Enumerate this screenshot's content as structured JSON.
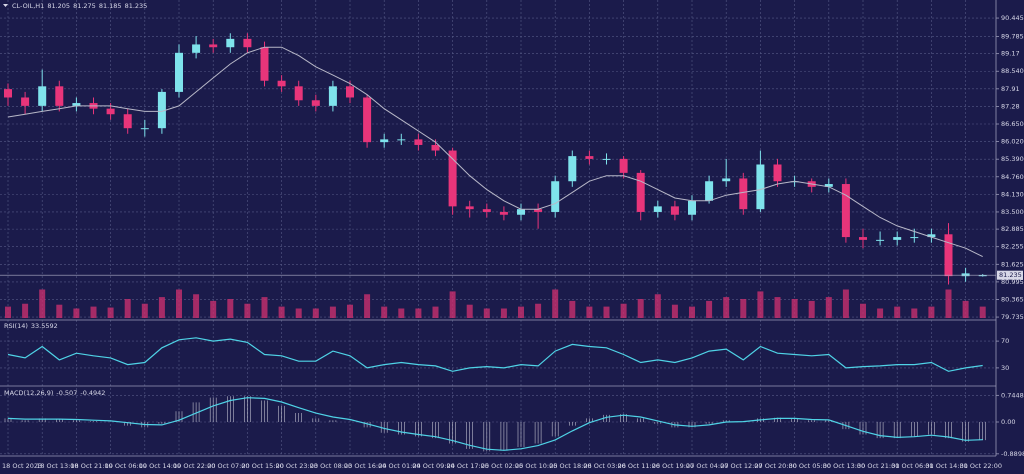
{
  "chart_data": [
    {
      "type": "candlestick",
      "title": "CL-OIL,H1",
      "categories": [
        "18 Oct 2023",
        null,
        "18 Oct 13:00",
        null,
        "18 Oct 21:00",
        null,
        "19 Oct 06:00",
        null,
        "19 Oct 14:00",
        null,
        "19 Oct 22:00",
        null,
        "20 Oct 07:00",
        null,
        "20 Oct 15:00",
        null,
        "20 Oct 23:00",
        null,
        "23 Oct 08:00",
        null,
        "23 Oct 16:00",
        null,
        "24 Oct 01:00",
        null,
        "24 Oct 09:00",
        null,
        "24 Oct 17:00",
        null,
        "25 Oct 02:00",
        null,
        "25 Oct 10:00",
        null,
        "25 Oct 18:00",
        null,
        "26 Oct 03:00",
        null,
        "26 Oct 11:00",
        null,
        "26 Oct 19:00",
        null,
        "27 Oct 04:00",
        null,
        "27 Oct 12:00",
        null,
        "27 Oct 20:00",
        null,
        "30 Oct 05:00",
        null,
        "30 Oct 13:00",
        null,
        "30 Oct 21:00",
        null,
        "31 Oct 06:00",
        null,
        "31 Oct 14:00",
        null,
        "31 Oct 22:00",
        null
      ],
      "open": [
        87.9,
        87.6,
        87.3,
        88.0,
        87.3,
        87.4,
        87.2,
        87.0,
        86.5,
        86.5,
        87.8,
        89.2,
        89.5,
        89.4,
        89.7,
        89.4,
        88.2,
        88.0,
        87.5,
        87.3,
        88.0,
        87.6,
        86.0,
        86.1,
        86.1,
        85.9,
        85.7,
        83.7,
        83.6,
        83.5,
        83.4,
        83.6,
        83.5,
        84.6,
        85.5,
        85.4,
        85.4,
        84.9,
        83.5,
        83.7,
        83.4,
        83.9,
        84.6,
        84.7,
        83.6,
        85.2,
        84.6,
        84.6,
        84.4,
        84.5,
        82.6,
        82.5,
        82.5,
        82.6,
        82.6,
        82.7,
        81.2,
        81.205
      ],
      "high": [
        88.1,
        87.8,
        88.6,
        88.2,
        87.6,
        87.6,
        87.4,
        87.2,
        86.8,
        87.9,
        89.5,
        89.8,
        89.7,
        89.9,
        89.9,
        89.6,
        88.4,
        88.2,
        87.7,
        88.2,
        88.2,
        87.7,
        86.3,
        86.3,
        86.3,
        86.1,
        85.8,
        83.9,
        83.8,
        83.7,
        83.8,
        83.8,
        84.8,
        85.7,
        85.7,
        85.6,
        85.5,
        85.0,
        83.9,
        83.9,
        84.1,
        84.8,
        85.4,
        84.9,
        85.7,
        85.4,
        84.8,
        84.7,
        84.7,
        84.7,
        82.9,
        82.8,
        82.8,
        82.9,
        82.9,
        83.1,
        81.5,
        81.275
      ],
      "low": [
        87.3,
        87.0,
        87.1,
        87.1,
        87.1,
        87.0,
        86.8,
        86.3,
        86.2,
        86.3,
        87.6,
        89.0,
        89.2,
        89.2,
        89.2,
        88.0,
        87.8,
        87.3,
        87.1,
        87.1,
        87.4,
        85.8,
        85.8,
        85.9,
        85.7,
        85.5,
        83.4,
        83.3,
        83.3,
        83.2,
        83.2,
        82.9,
        83.3,
        84.4,
        85.2,
        85.2,
        84.7,
        83.2,
        83.3,
        83.2,
        83.2,
        83.8,
        84.4,
        83.4,
        83.5,
        84.4,
        84.4,
        84.2,
        84.2,
        82.4,
        82.2,
        82.3,
        82.3,
        82.4,
        82.4,
        80.9,
        81.0,
        81.185
      ],
      "close": [
        87.6,
        87.3,
        88.0,
        87.3,
        87.4,
        87.2,
        87.0,
        86.5,
        86.5,
        87.8,
        89.2,
        89.5,
        89.4,
        89.7,
        89.4,
        88.2,
        88.0,
        87.5,
        87.3,
        88.0,
        87.6,
        86.0,
        86.1,
        86.1,
        85.9,
        85.7,
        83.7,
        83.6,
        83.5,
        83.4,
        83.6,
        83.5,
        84.6,
        85.5,
        85.4,
        85.4,
        84.9,
        83.5,
        83.7,
        83.4,
        83.9,
        84.6,
        84.7,
        83.6,
        85.2,
        84.6,
        84.6,
        84.4,
        84.5,
        82.6,
        82.5,
        82.5,
        82.6,
        82.6,
        82.7,
        81.2,
        81.3,
        81.235
      ],
      "ma": [
        86.9,
        87.0,
        87.1,
        87.2,
        87.3,
        87.3,
        87.3,
        87.2,
        87.1,
        87.1,
        87.3,
        87.8,
        88.3,
        88.8,
        89.2,
        89.4,
        89.4,
        89.1,
        88.7,
        88.4,
        88.1,
        87.7,
        87.2,
        86.8,
        86.4,
        86.0,
        85.4,
        84.8,
        84.3,
        83.9,
        83.6,
        83.6,
        83.8,
        84.2,
        84.6,
        84.8,
        84.8,
        84.6,
        84.3,
        84.0,
        83.9,
        83.9,
        84.1,
        84.2,
        84.3,
        84.5,
        84.6,
        84.5,
        84.4,
        84.1,
        83.7,
        83.3,
        83.0,
        82.8,
        82.6,
        82.4,
        82.2,
        81.9
      ],
      "volume": [
        12,
        15,
        30,
        14,
        10,
        12,
        11,
        20,
        15,
        22,
        30,
        25,
        18,
        20,
        15,
        22,
        12,
        10,
        10,
        12,
        14,
        25,
        12,
        10,
        10,
        12,
        28,
        14,
        10,
        10,
        12,
        15,
        30,
        18,
        12,
        12,
        15,
        20,
        25,
        14,
        12,
        18,
        22,
        20,
        28,
        22,
        20,
        18,
        22,
        30,
        15,
        10,
        12,
        10,
        12,
        30,
        18,
        12
      ],
      "vlim": [
        0,
        40
      ],
      "ylim": [
        79.63,
        91.02
      ],
      "yticks": [
        90.445,
        89.785,
        89.17,
        {
          "value": 88.54,
          "label": "88.540"
        },
        87.91,
        87.28,
        {
          "value": 86.65,
          "label": "86.650"
        },
        {
          "value": 86.02,
          "label": "86.020"
        },
        {
          "value": 85.39,
          "label": "85.390"
        },
        {
          "value": 84.76,
          "label": "84.760"
        },
        {
          "value": 84.13,
          "label": "84.130"
        },
        {
          "value": 83.5,
          "label": "83.500"
        },
        82.885,
        82.255,
        81.625,
        80.995,
        80.365,
        79.735
      ],
      "grid": true,
      "up_color": "#7fe3ec",
      "down_color": "#e8357a",
      "ma_color": "#b8b8c8",
      "volume_color": "#c8306e"
    },
    {
      "type": "line",
      "title": "RSI(14)",
      "values": [
        50,
        45,
        62,
        42,
        52,
        48,
        45,
        35,
        38,
        60,
        72,
        75,
        70,
        73,
        68,
        50,
        48,
        40,
        40,
        55,
        48,
        30,
        35,
        38,
        35,
        33,
        25,
        30,
        32,
        30,
        35,
        33,
        55,
        65,
        62,
        60,
        50,
        38,
        42,
        38,
        45,
        55,
        58,
        42,
        62,
        52,
        50,
        48,
        50,
        30,
        32,
        33,
        35,
        35,
        38,
        25,
        30,
        33.5592
      ],
      "ylim": [
        0,
        100
      ],
      "yticks": [
        30,
        70
      ],
      "color": "#4fd3e6"
    },
    {
      "type": "macd",
      "title": "MACD(12,26,9)",
      "values": [
        0.1,
        0.05,
        0.1,
        0.08,
        0.05,
        0.02,
        0.0,
        -0.1,
        -0.15,
        -0.05,
        0.3,
        0.55,
        0.68,
        0.72,
        0.72,
        0.6,
        0.45,
        0.25,
        0.1,
        0.05,
        0.0,
        -0.15,
        -0.3,
        -0.35,
        -0.4,
        -0.45,
        -0.6,
        -0.75,
        -0.82,
        -0.8,
        -0.7,
        -0.6,
        -0.4,
        -0.1,
        0.1,
        0.2,
        0.22,
        0.1,
        -0.05,
        -0.15,
        -0.15,
        -0.05,
        0.05,
        0.0,
        0.1,
        0.12,
        0.1,
        0.05,
        0.05,
        -0.2,
        -0.35,
        -0.45,
        -0.45,
        -0.4,
        -0.35,
        -0.45,
        -0.55,
        -0.507
      ],
      "signal": [
        0.1,
        0.08,
        0.08,
        0.08,
        0.07,
        0.05,
        0.03,
        -0.02,
        -0.07,
        -0.08,
        0.05,
        0.25,
        0.45,
        0.6,
        0.68,
        0.66,
        0.56,
        0.4,
        0.25,
        0.14,
        0.07,
        -0.05,
        -0.18,
        -0.28,
        -0.35,
        -0.41,
        -0.52,
        -0.65,
        -0.76,
        -0.79,
        -0.75,
        -0.66,
        -0.5,
        -0.25,
        -0.02,
        0.13,
        0.19,
        0.14,
        0.03,
        -0.08,
        -0.12,
        -0.08,
        0.0,
        0.01,
        0.06,
        0.1,
        0.1,
        0.07,
        0.06,
        -0.1,
        -0.26,
        -0.38,
        -0.43,
        -0.41,
        -0.37,
        -0.42,
        -0.51,
        -0.4942
      ],
      "ylim": [
        -0.95,
        0.95
      ],
      "yticks": [
        0.7448,
        {
          "value": 0,
          "label": "0.00"
        },
        -0.8898
      ],
      "color": "#e6e6ee",
      "signal_color": "#4fd3e6"
    }
  ]
}
